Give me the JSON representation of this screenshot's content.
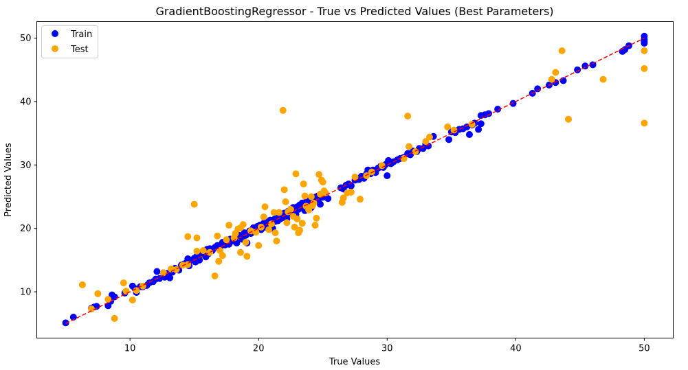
{
  "chart_data": {
    "type": "scatter",
    "title": "GradientBoostingRegressor - True vs Predicted Values (Best Parameters)",
    "xlabel": "True Values",
    "ylabel": "Predicted Values",
    "xlim": [
      2.75,
      52.25
    ],
    "ylim": [
      2.7,
      52.6
    ],
    "xticks": [
      10,
      20,
      30,
      40,
      50
    ],
    "yticks": [
      10,
      20,
      30,
      40,
      50
    ],
    "grid": false,
    "legend_position": "top-left",
    "reference_line": {
      "name": "ideal",
      "color": "#ff0000",
      "style": "dashed",
      "from": [
        5,
        5
      ],
      "to": [
        50,
        50
      ]
    },
    "series": [
      {
        "name": "Train",
        "color": "#0000ff",
        "points": [
          [
            5.0,
            5.1
          ],
          [
            5.6,
            6.0
          ],
          [
            7.0,
            7.4
          ],
          [
            7.2,
            7.6
          ],
          [
            7.4,
            7.7
          ],
          [
            8.3,
            7.8
          ],
          [
            8.5,
            8.5
          ],
          [
            8.6,
            9.5
          ],
          [
            8.8,
            9.2
          ],
          [
            9.6,
            9.8
          ],
          [
            10.2,
            10.9
          ],
          [
            10.4,
            10.5
          ],
          [
            10.5,
            9.9
          ],
          [
            10.8,
            10.8
          ],
          [
            11.0,
            10.8
          ],
          [
            11.3,
            11.0
          ],
          [
            11.5,
            11.4
          ],
          [
            11.8,
            11.6
          ],
          [
            12.0,
            12.0
          ],
          [
            12.1,
            13.2
          ],
          [
            12.3,
            12.1
          ],
          [
            12.6,
            13.0
          ],
          [
            12.7,
            12.3
          ],
          [
            12.9,
            12.9
          ],
          [
            13.1,
            12.2
          ],
          [
            13.3,
            13.1
          ],
          [
            13.5,
            13.7
          ],
          [
            13.8,
            13.4
          ],
          [
            14.0,
            14.2
          ],
          [
            14.2,
            14.4
          ],
          [
            14.4,
            14.6
          ],
          [
            14.5,
            15.2
          ],
          [
            14.6,
            14.1
          ],
          [
            14.8,
            15.0
          ],
          [
            15.0,
            15.3
          ],
          [
            15.1,
            14.7
          ],
          [
            15.2,
            15.6
          ],
          [
            15.4,
            15.0
          ],
          [
            15.6,
            15.9
          ],
          [
            15.7,
            16.3
          ],
          [
            15.9,
            15.5
          ],
          [
            16.0,
            16.7
          ],
          [
            16.1,
            16.0
          ],
          [
            16.2,
            16.8
          ],
          [
            16.4,
            16.5
          ],
          [
            16.6,
            17.0
          ],
          [
            16.8,
            17.3
          ],
          [
            17.0,
            17.0
          ],
          [
            17.2,
            17.8
          ],
          [
            17.4,
            17.4
          ],
          [
            17.5,
            18.0
          ],
          [
            17.7,
            17.5
          ],
          [
            17.8,
            18.3
          ],
          [
            18.0,
            18.0
          ],
          [
            18.2,
            18.6
          ],
          [
            18.3,
            17.7
          ],
          [
            18.5,
            18.9
          ],
          [
            18.7,
            18.3
          ],
          [
            18.9,
            19.3
          ],
          [
            19.0,
            18.9
          ],
          [
            19.1,
            17.7
          ],
          [
            19.3,
            19.6
          ],
          [
            19.4,
            19.2
          ],
          [
            19.6,
            20.1
          ],
          [
            19.7,
            19.7
          ],
          [
            19.9,
            20.3
          ],
          [
            20.0,
            20.0
          ],
          [
            20.1,
            20.5
          ],
          [
            20.2,
            19.8
          ],
          [
            20.4,
            20.8
          ],
          [
            20.5,
            20.2
          ],
          [
            20.6,
            21.0
          ],
          [
            20.8,
            20.6
          ],
          [
            20.9,
            21.3
          ],
          [
            21.0,
            20.9
          ],
          [
            21.1,
            20.0
          ],
          [
            21.2,
            21.4
          ],
          [
            21.3,
            21.1
          ],
          [
            21.4,
            21.8
          ],
          [
            21.5,
            21.2
          ],
          [
            21.6,
            21.9
          ],
          [
            21.7,
            21.5
          ],
          [
            21.8,
            22.2
          ],
          [
            21.9,
            21.7
          ],
          [
            22.0,
            22.4
          ],
          [
            22.1,
            22.0
          ],
          [
            22.2,
            21.5
          ],
          [
            22.3,
            22.7
          ],
          [
            22.4,
            22.3
          ],
          [
            22.5,
            23.0
          ],
          [
            22.6,
            22.5
          ],
          [
            22.7,
            23.3
          ],
          [
            22.8,
            22.8
          ],
          [
            22.9,
            22.2
          ],
          [
            23.0,
            23.4
          ],
          [
            23.1,
            23.0
          ],
          [
            23.2,
            23.7
          ],
          [
            23.3,
            23.2
          ],
          [
            23.4,
            24.0
          ],
          [
            23.5,
            23.5
          ],
          [
            23.6,
            22.8
          ],
          [
            23.7,
            24.2
          ],
          [
            23.8,
            23.8
          ],
          [
            23.9,
            24.4
          ],
          [
            24.0,
            24.0
          ],
          [
            24.1,
            23.3
          ],
          [
            24.2,
            24.6
          ],
          [
            24.3,
            24.2
          ],
          [
            24.4,
            24.9
          ],
          [
            24.5,
            24.5
          ],
          [
            24.6,
            25.1
          ],
          [
            24.7,
            24.7
          ],
          [
            24.8,
            23.8
          ],
          [
            24.9,
            25.3
          ],
          [
            25.0,
            24.9
          ],
          [
            25.2,
            25.5
          ],
          [
            25.4,
            24.7
          ],
          [
            26.4,
            26.4
          ],
          [
            26.6,
            26.2
          ],
          [
            26.8,
            26.8
          ],
          [
            27.0,
            27.0
          ],
          [
            27.2,
            26.7
          ],
          [
            27.5,
            27.6
          ],
          [
            27.8,
            27.7
          ],
          [
            28.0,
            28.2
          ],
          [
            28.2,
            27.9
          ],
          [
            28.4,
            28.6
          ],
          [
            28.5,
            29.2
          ],
          [
            28.7,
            28.6
          ],
          [
            28.9,
            29.2
          ],
          [
            29.1,
            28.8
          ],
          [
            29.3,
            29.5
          ],
          [
            29.5,
            29.8
          ],
          [
            29.7,
            29.6
          ],
          [
            29.9,
            30.1
          ],
          [
            30.0,
            28.3
          ],
          [
            30.1,
            30.7
          ],
          [
            30.3,
            30.2
          ],
          [
            30.5,
            30.5
          ],
          [
            30.8,
            30.8
          ],
          [
            31.0,
            31.0
          ],
          [
            31.3,
            31.2
          ],
          [
            31.6,
            31.8
          ],
          [
            31.8,
            31.6
          ],
          [
            32.0,
            32.2
          ],
          [
            32.3,
            32.1
          ],
          [
            32.5,
            32.6
          ],
          [
            32.8,
            32.6
          ],
          [
            33.0,
            33.3
          ],
          [
            33.2,
            33.0
          ],
          [
            33.6,
            34.5
          ],
          [
            34.8,
            34.0
          ],
          [
            35.0,
            35.2
          ],
          [
            35.3,
            35.1
          ],
          [
            35.6,
            35.6
          ],
          [
            35.9,
            35.7
          ],
          [
            36.2,
            36.0
          ],
          [
            36.4,
            34.8
          ],
          [
            36.6,
            36.3
          ],
          [
            36.8,
            36.6
          ],
          [
            37.1,
            35.6
          ],
          [
            37.3,
            36.5
          ],
          [
            37.3,
            37.8
          ],
          [
            37.6,
            37.9
          ],
          [
            37.9,
            38.1
          ],
          [
            38.6,
            38.8
          ],
          [
            39.8,
            39.7
          ],
          [
            41.3,
            41.3
          ],
          [
            41.7,
            42.0
          ],
          [
            42.6,
            42.6
          ],
          [
            43.1,
            43.0
          ],
          [
            43.7,
            43.3
          ],
          [
            44.8,
            45.0
          ],
          [
            45.4,
            45.6
          ],
          [
            46.0,
            45.8
          ],
          [
            48.3,
            47.9
          ],
          [
            48.5,
            48.2
          ],
          [
            48.8,
            48.8
          ],
          [
            50.0,
            50.3
          ],
          [
            50.0,
            49.8
          ],
          [
            50.0,
            49.5
          ],
          [
            50.0,
            49.2
          ]
        ]
      },
      {
        "name": "Test",
        "color": "#ffa500",
        "points": [
          [
            6.3,
            11.1
          ],
          [
            7.0,
            7.3
          ],
          [
            7.5,
            9.7
          ],
          [
            8.3,
            8.8
          ],
          [
            8.8,
            5.8
          ],
          [
            9.5,
            11.4
          ],
          [
            9.7,
            10.1
          ],
          [
            10.2,
            8.7
          ],
          [
            10.5,
            10.2
          ],
          [
            11.0,
            10.9
          ],
          [
            12.6,
            13.0
          ],
          [
            13.2,
            13.6
          ],
          [
            13.6,
            13.5
          ],
          [
            14.1,
            14.2
          ],
          [
            14.5,
            14.3
          ],
          [
            14.5,
            18.7
          ],
          [
            15.0,
            23.8
          ],
          [
            15.2,
            18.5
          ],
          [
            15.2,
            16.4
          ],
          [
            15.7,
            16.5
          ],
          [
            16.2,
            16.2
          ],
          [
            16.6,
            12.5
          ],
          [
            16.8,
            18.8
          ],
          [
            16.9,
            14.8
          ],
          [
            17.0,
            16.5
          ],
          [
            17.2,
            15.7
          ],
          [
            17.5,
            18.2
          ],
          [
            17.7,
            20.5
          ],
          [
            18.1,
            18.5
          ],
          [
            18.2,
            19.2
          ],
          [
            18.4,
            19.9
          ],
          [
            18.6,
            20.1
          ],
          [
            18.6,
            16.2
          ],
          [
            18.8,
            20.6
          ],
          [
            19.0,
            17.8
          ],
          [
            19.1,
            15.6
          ],
          [
            19.4,
            19.6
          ],
          [
            19.8,
            19.4
          ],
          [
            20.0,
            17.3
          ],
          [
            20.2,
            20.2
          ],
          [
            20.4,
            21.8
          ],
          [
            20.5,
            23.4
          ],
          [
            20.8,
            19.8
          ],
          [
            21.0,
            20.7
          ],
          [
            21.2,
            22.5
          ],
          [
            21.3,
            19.3
          ],
          [
            21.4,
            18.0
          ],
          [
            21.6,
            22.5
          ],
          [
            21.9,
            38.6
          ],
          [
            22.0,
            26.1
          ],
          [
            22.1,
            24.2
          ],
          [
            22.2,
            20.9
          ],
          [
            22.3,
            22.6
          ],
          [
            22.5,
            23.0
          ],
          [
            22.7,
            21.9
          ],
          [
            22.8,
            20.2
          ],
          [
            22.9,
            28.6
          ],
          [
            23.0,
            21.5
          ],
          [
            23.1,
            19.3
          ],
          [
            23.2,
            19.7
          ],
          [
            23.4,
            20.8
          ],
          [
            23.5,
            27.0
          ],
          [
            23.6,
            25.1
          ],
          [
            23.7,
            23.5
          ],
          [
            23.9,
            22.9
          ],
          [
            24.1,
            25.0
          ],
          [
            24.2,
            23.6
          ],
          [
            24.3,
            24.0
          ],
          [
            24.4,
            20.5
          ],
          [
            24.5,
            21.6
          ],
          [
            24.7,
            28.5
          ],
          [
            24.8,
            25.4
          ],
          [
            24.9,
            27.6
          ],
          [
            25.0,
            27.3
          ],
          [
            25.1,
            25.9
          ],
          [
            25.2,
            25.6
          ],
          [
            26.5,
            24.1
          ],
          [
            26.6,
            24.8
          ],
          [
            26.9,
            25.6
          ],
          [
            27.2,
            25.7
          ],
          [
            27.5,
            28.1
          ],
          [
            27.9,
            24.6
          ],
          [
            28.4,
            28.3
          ],
          [
            28.8,
            28.9
          ],
          [
            29.6,
            29.9
          ],
          [
            31.3,
            31.0
          ],
          [
            31.6,
            37.7
          ],
          [
            31.7,
            32.9
          ],
          [
            32.2,
            32.1
          ],
          [
            33.0,
            33.7
          ],
          [
            33.3,
            34.4
          ],
          [
            34.7,
            36.0
          ],
          [
            35.2,
            35.5
          ],
          [
            36.6,
            36.4
          ],
          [
            42.8,
            43.5
          ],
          [
            43.1,
            44.6
          ],
          [
            43.6,
            48.0
          ],
          [
            44.1,
            37.2
          ],
          [
            46.8,
            43.5
          ],
          [
            50.0,
            48.0
          ],
          [
            50.0,
            45.2
          ],
          [
            50.0,
            36.6
          ]
        ]
      }
    ]
  }
}
